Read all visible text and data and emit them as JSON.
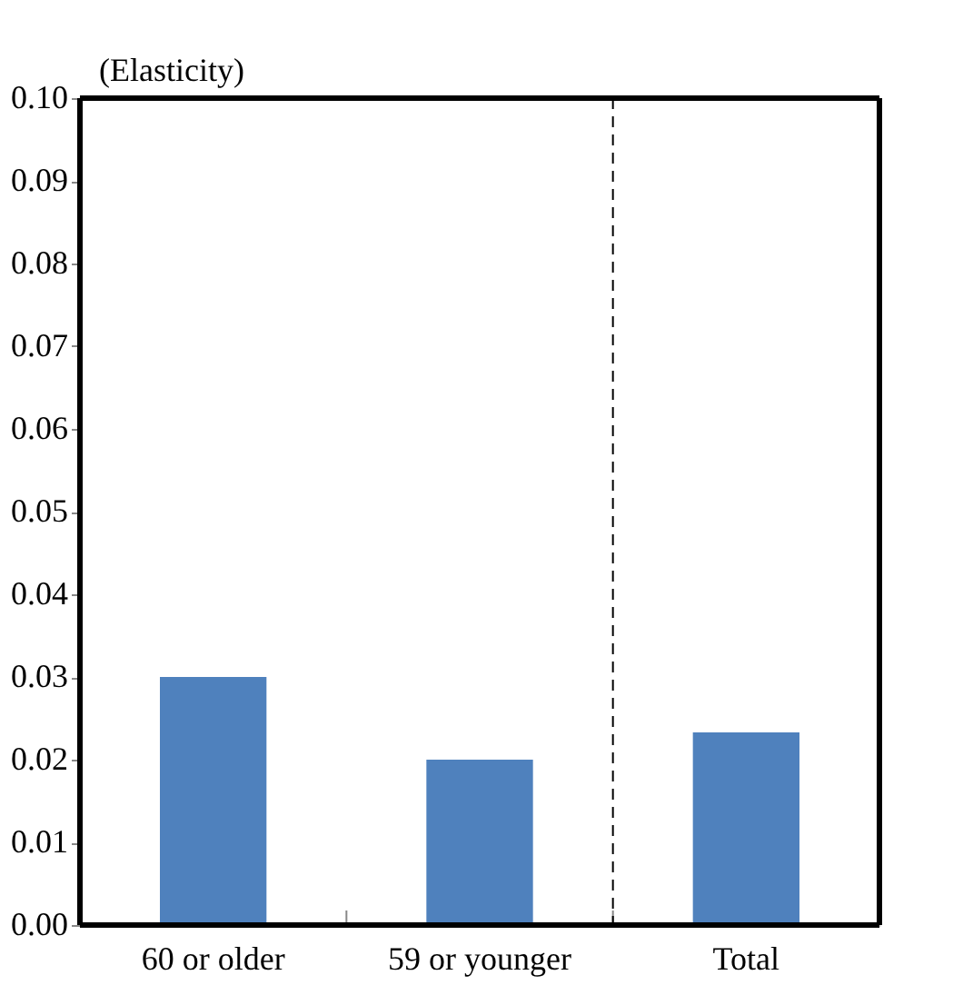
{
  "chart_data": {
    "type": "bar",
    "ylabel": "(Elasticity)",
    "categories": [
      "60 or older",
      "59 or younger",
      "Total"
    ],
    "values": [
      0.03,
      0.02,
      0.0233
    ],
    "color": "#4f81bd",
    "ylim": [
      0,
      0.1
    ],
    "yticks": [
      {
        "value": 0,
        "label": "0.00"
      },
      {
        "value": 0.01,
        "label": "0.01"
      },
      {
        "value": 0.02,
        "label": "0.02"
      },
      {
        "value": 0.03,
        "label": "0.03"
      },
      {
        "value": 0.04,
        "label": "0.04"
      },
      {
        "value": 0.05,
        "label": "0.05"
      },
      {
        "value": 0.06,
        "label": "0.06"
      },
      {
        "value": 0.07,
        "label": "0.07"
      },
      {
        "value": 0.08,
        "label": "0.08"
      },
      {
        "value": 0.09,
        "label": "0.09"
      },
      {
        "value": 0.1,
        "label": "0.10"
      }
    ],
    "grid": false
  }
}
